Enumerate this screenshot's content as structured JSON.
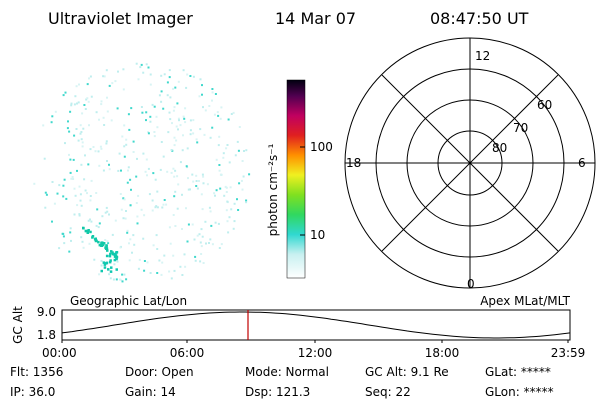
{
  "header": {
    "instrument": "Ultraviolet Imager",
    "date": "14 Mar 07",
    "time": "08:47:50 UT"
  },
  "colorbar": {
    "label": "photon cm⁻²s⁻¹",
    "ticks": [
      "100",
      "10"
    ]
  },
  "polar": {
    "mlt_labels": [
      "12",
      "6",
      "18",
      "0"
    ],
    "lat_labels": [
      "60",
      "70",
      "80"
    ]
  },
  "orbit": {
    "y_label": "GC Alt",
    "y_ticks": [
      "9.0",
      "1.8"
    ],
    "left_title": "Geographic Lat/Lon",
    "right_title": "Apex MLat/MLT",
    "x_ticks": [
      "00:00",
      "06:00",
      "12:00",
      "18:00",
      "23:59"
    ]
  },
  "status": [
    [
      "Flt: 1356",
      "IP: 36.0"
    ],
    [
      "Door: Open",
      "Gain: 14"
    ],
    [
      "Mode: Normal",
      "Dsp: 121.3"
    ],
    [
      "GC Alt: 9.1 Re",
      "Seq: 22"
    ],
    [
      "GLat: *****",
      "GLon: *****"
    ]
  ]
}
